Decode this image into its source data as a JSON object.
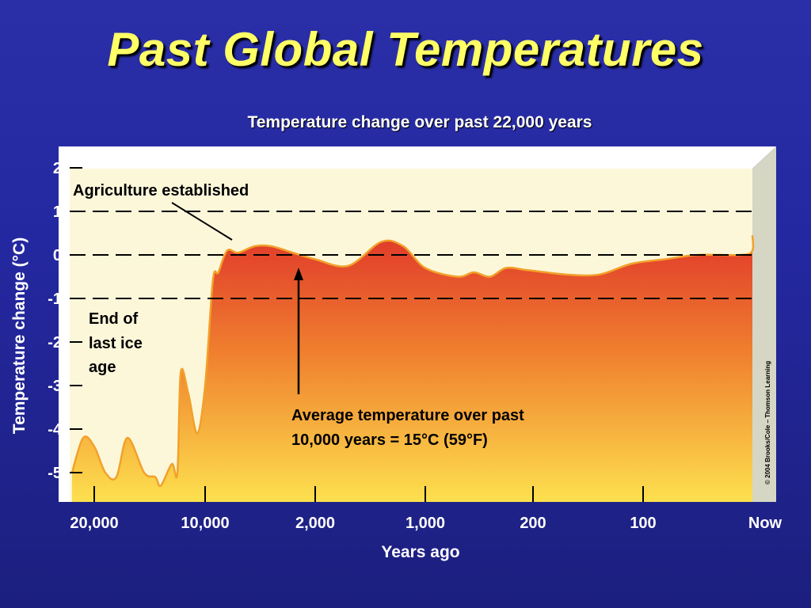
{
  "slide": {
    "title": "Past Global Temperatures"
  },
  "colors": {
    "background": "#2428a0",
    "title": "#ffff66",
    "plot_background": "#fdf7da",
    "area_top": "#e03a2a",
    "area_bottom": "#fde04e",
    "curve": "#f2a12a"
  },
  "chart_data": {
    "type": "area",
    "title": "Temperature change over past 22,000 years",
    "xlabel": "Years ago",
    "ylabel": "Temperature change (°C)",
    "x_ticks": [
      "20,000",
      "10,000",
      "2,000",
      "1,000",
      "200",
      "100",
      "Now"
    ],
    "y_ticks": [
      "2",
      "1",
      "0",
      "-1",
      "-2",
      "-3",
      "-4",
      "-5"
    ],
    "ylim": [
      -5.5,
      2.2
    ],
    "x_scale": "non-linear (tick categories evenly spaced)",
    "reference_lines": [
      1,
      0,
      -1
    ],
    "series": [
      {
        "values_by_tick_position": [
          [
            -0.2,
            -5.0
          ],
          [
            -0.1,
            -4.2
          ],
          [
            0.0,
            -4.4
          ],
          [
            0.1,
            -5.0
          ],
          [
            0.2,
            -5.1
          ],
          [
            0.3,
            -4.2
          ],
          [
            0.45,
            -5.0
          ],
          [
            0.55,
            -5.1
          ],
          [
            0.6,
            -5.3
          ],
          [
            0.7,
            -4.8
          ],
          [
            0.75,
            -5.0
          ],
          [
            0.78,
            -2.7
          ],
          [
            0.85,
            -3.2
          ],
          [
            0.93,
            -4.1
          ],
          [
            1.0,
            -3.0
          ],
          [
            1.07,
            -0.6
          ],
          [
            1.12,
            -0.4
          ],
          [
            1.2,
            0.1
          ],
          [
            1.3,
            0.05
          ],
          [
            1.45,
            0.2
          ],
          [
            1.6,
            0.2
          ],
          [
            1.8,
            0.05
          ],
          [
            2.0,
            -0.1
          ],
          [
            2.3,
            -0.25
          ],
          [
            2.6,
            0.3
          ],
          [
            2.8,
            0.2
          ],
          [
            3.0,
            -0.3
          ],
          [
            3.3,
            -0.5
          ],
          [
            3.45,
            -0.4
          ],
          [
            3.6,
            -0.5
          ],
          [
            3.75,
            -0.3
          ],
          [
            3.95,
            -0.35
          ],
          [
            4.3,
            -0.45
          ],
          [
            4.6,
            -0.45
          ],
          [
            4.9,
            -0.2
          ],
          [
            5.2,
            -0.1
          ],
          [
            5.5,
            0.0
          ],
          [
            5.9,
            0.0
          ],
          [
            6.2,
            0.1
          ],
          [
            6.37,
            0.45
          ]
        ]
      }
    ],
    "annotations": [
      "Agriculture established",
      "End of last ice age",
      "Average temperature over past 10,000 years = 15°C (59°F)"
    ]
  },
  "annotations": {
    "agriculture": "Agriculture established",
    "ice_age_1": "End of",
    "ice_age_2": "last ice",
    "ice_age_3": "age",
    "average_1": "Average temperature over past",
    "average_2": "10,000 years = 15°C (59°F)"
  },
  "copyright": "© 2004 Brooks/Cole – Thomson Learning"
}
